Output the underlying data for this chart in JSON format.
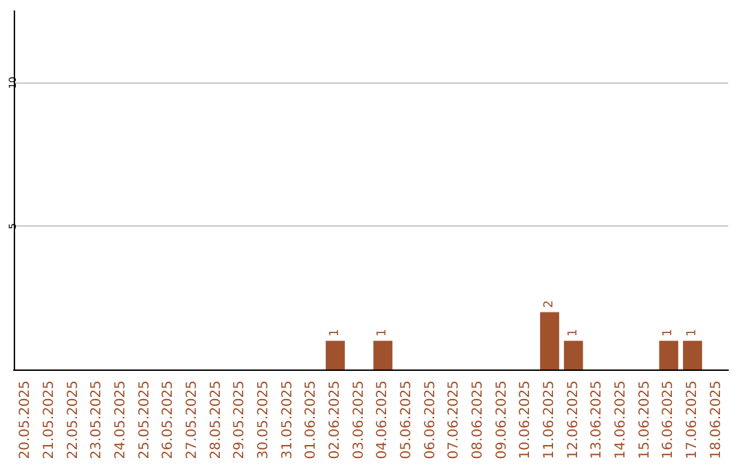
{
  "chart_data": {
    "type": "bar",
    "categories": [
      "20.05.2025",
      "21.05.2025",
      "22.05.2025",
      "23.05.2025",
      "24.05.2025",
      "25.05.2025",
      "26.05.2025",
      "27.05.2025",
      "28.05.2025",
      "29.05.2025",
      "30.05.2025",
      "31.05.2025",
      "01.06.2025",
      "02.06.2025",
      "03.06.2025",
      "04.06.2025",
      "05.06.2025",
      "06.06.2025",
      "07.06.2025",
      "08.06.2025",
      "09.06.2025",
      "10.06.2025",
      "11.06.2025",
      "12.06.2025",
      "13.06.2025",
      "14.06.2025",
      "15.06.2025",
      "16.06.2025",
      "17.06.2025",
      "18.06.2025"
    ],
    "values": [
      0,
      0,
      0,
      0,
      0,
      0,
      0,
      0,
      0,
      0,
      0,
      0,
      0,
      1,
      0,
      1,
      0,
      0,
      0,
      0,
      0,
      0,
      2,
      1,
      0,
      0,
      0,
      1,
      1,
      0
    ],
    "value_labels": [
      null,
      null,
      null,
      null,
      null,
      null,
      null,
      null,
      null,
      null,
      null,
      null,
      null,
      "1",
      null,
      "1",
      null,
      null,
      null,
      null,
      null,
      null,
      "2",
      "1",
      null,
      null,
      null,
      "1",
      "1",
      null
    ],
    "color": "#a0522d",
    "ylim": [
      0,
      12.5
    ],
    "yticks": [
      5,
      10
    ],
    "grid": "y"
  }
}
